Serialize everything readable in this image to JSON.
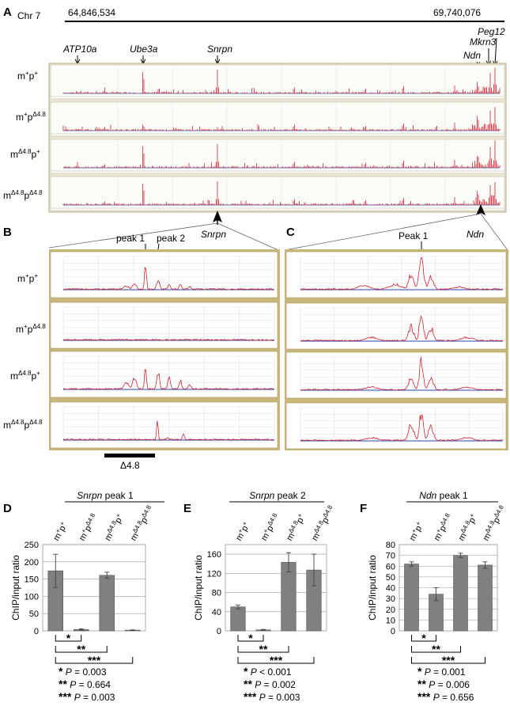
{
  "panelA": {
    "letter": "A",
    "chrom": "Chr 7",
    "coord_start": "64,846,534",
    "coord_end": "69,740,076",
    "genes": [
      "ATP10a",
      "Ube3a",
      "Snrpn",
      "Ndn",
      "Mkrn3",
      "Peg12"
    ],
    "arrow_label": "Snrpn"
  },
  "genotypes": {
    "g1": {
      "m": "+",
      "p": "+"
    },
    "g2": {
      "m": "+",
      "p": "Δ4.8"
    },
    "g3": {
      "m": "Δ4.8",
      "p": "+"
    },
    "g4": {
      "m": "Δ4.8",
      "p": "Δ4.8"
    }
  },
  "panelB": {
    "letter": "B",
    "peak1": "peak 1",
    "peak2": "peak 2",
    "scale_label": "Δ4.8"
  },
  "panelC": {
    "letter": "C",
    "title": "Ndn",
    "peak1": "Peak 1"
  },
  "colors": {
    "signal": "#d0222e",
    "input": "#3040b0",
    "frame": "#c8b67a",
    "bar": "#808080"
  },
  "chart_data": [
    {
      "panel": "D",
      "type": "bar",
      "title_gene": "Snrpn",
      "title_rest": "peak 1",
      "ylabel": "ChIP/input ratio",
      "categories": [
        "m+p+",
        "m+pΔ4.8",
        "mΔ4.8p+",
        "mΔ4.8pΔ4.8"
      ],
      "values": [
        174,
        4,
        161,
        2
      ],
      "errors": [
        48,
        2,
        9,
        1
      ],
      "ylim": [
        0,
        250
      ],
      "yticks": [
        0,
        50,
        100,
        150,
        200,
        250
      ],
      "significance": [
        {
          "stars": "*",
          "text": " P = 0.003"
        },
        {
          "stars": "**",
          "text": " P = 0.664"
        },
        {
          "stars": "***",
          "text": " P = 0.003"
        }
      ]
    },
    {
      "panel": "E",
      "type": "bar",
      "title_gene": "Snrpn",
      "title_rest": "peak 2",
      "ylabel": "ChIP/input ratio",
      "categories": [
        "m+p+",
        "m+pΔ4.8",
        "mΔ4.8p+",
        "mΔ4.8pΔ4.8"
      ],
      "values": [
        50,
        2,
        143,
        127
      ],
      "errors": [
        4,
        1,
        20,
        33
      ],
      "ylim": [
        0,
        180
      ],
      "yticks": [
        0,
        40,
        80,
        120,
        160
      ],
      "significance": [
        {
          "stars": "*",
          "text": " P < 0.001"
        },
        {
          "stars": "**",
          "text": " P = 0.002"
        },
        {
          "stars": "***",
          "text": " P = 0.003"
        }
      ]
    },
    {
      "panel": "F",
      "type": "bar",
      "title_gene": "Ndn",
      "title_rest": "peak 1",
      "ylabel": "ChIP/input ratio",
      "categories": [
        "m+p+",
        "m+pΔ4.8",
        "mΔ4.8p+",
        "mΔ4.8pΔ4.8"
      ],
      "values": [
        62,
        34,
        70,
        61
      ],
      "errors": [
        2,
        6,
        2,
        3
      ],
      "ylim": [
        0,
        80
      ],
      "yticks": [
        0,
        10,
        20,
        30,
        40,
        50,
        60,
        70,
        80
      ],
      "significance": [
        {
          "stars": "*",
          "text": " P = 0.001"
        },
        {
          "stars": "**",
          "text": " P = 0.006"
        },
        {
          "stars": "***",
          "text": " P = 0.656"
        }
      ]
    }
  ]
}
